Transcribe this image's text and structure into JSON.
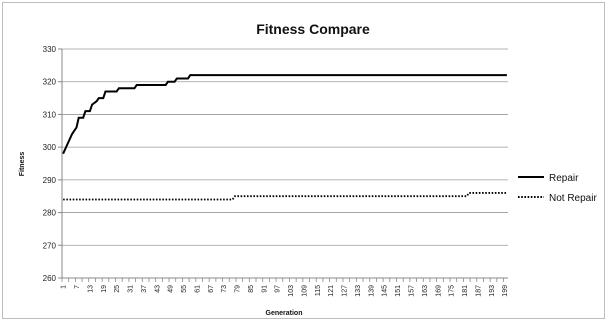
{
  "chart_data": {
    "type": "line",
    "title": "Fitness Compare",
    "xlabel": "Generation",
    "ylabel": "Fitness",
    "ylim": [
      260,
      330
    ],
    "yticks": [
      260,
      270,
      280,
      290,
      300,
      310,
      320,
      330
    ],
    "x_range": [
      1,
      200
    ],
    "xticks": [
      1,
      7,
      13,
      19,
      25,
      31,
      37,
      43,
      49,
      55,
      61,
      67,
      73,
      79,
      85,
      91,
      97,
      103,
      109,
      115,
      121,
      127,
      133,
      139,
      145,
      151,
      157,
      163,
      169,
      175,
      181,
      187,
      193,
      199
    ],
    "grid": "horizontal",
    "legend": "right",
    "series": [
      {
        "name": "Repair",
        "style": "solid",
        "color": "#000000",
        "points": [
          [
            1,
            298
          ],
          [
            3,
            301
          ],
          [
            5,
            304
          ],
          [
            7,
            306
          ],
          [
            8,
            309
          ],
          [
            10,
            309
          ],
          [
            11,
            311
          ],
          [
            13,
            311
          ],
          [
            14,
            313
          ],
          [
            16,
            314
          ],
          [
            17,
            315
          ],
          [
            19,
            315
          ],
          [
            20,
            317
          ],
          [
            25,
            317
          ],
          [
            26,
            318
          ],
          [
            33,
            318
          ],
          [
            34,
            319
          ],
          [
            47,
            319
          ],
          [
            48,
            320
          ],
          [
            51,
            320
          ],
          [
            52,
            321
          ],
          [
            57,
            321
          ],
          [
            58,
            322
          ],
          [
            200,
            322
          ]
        ]
      },
      {
        "name": "Not Repair",
        "style": "dotted",
        "color": "#000000",
        "points": [
          [
            1,
            284
          ],
          [
            77,
            284
          ],
          [
            78,
            285
          ],
          [
            182,
            285
          ],
          [
            183,
            286
          ],
          [
            200,
            286
          ]
        ]
      }
    ]
  }
}
